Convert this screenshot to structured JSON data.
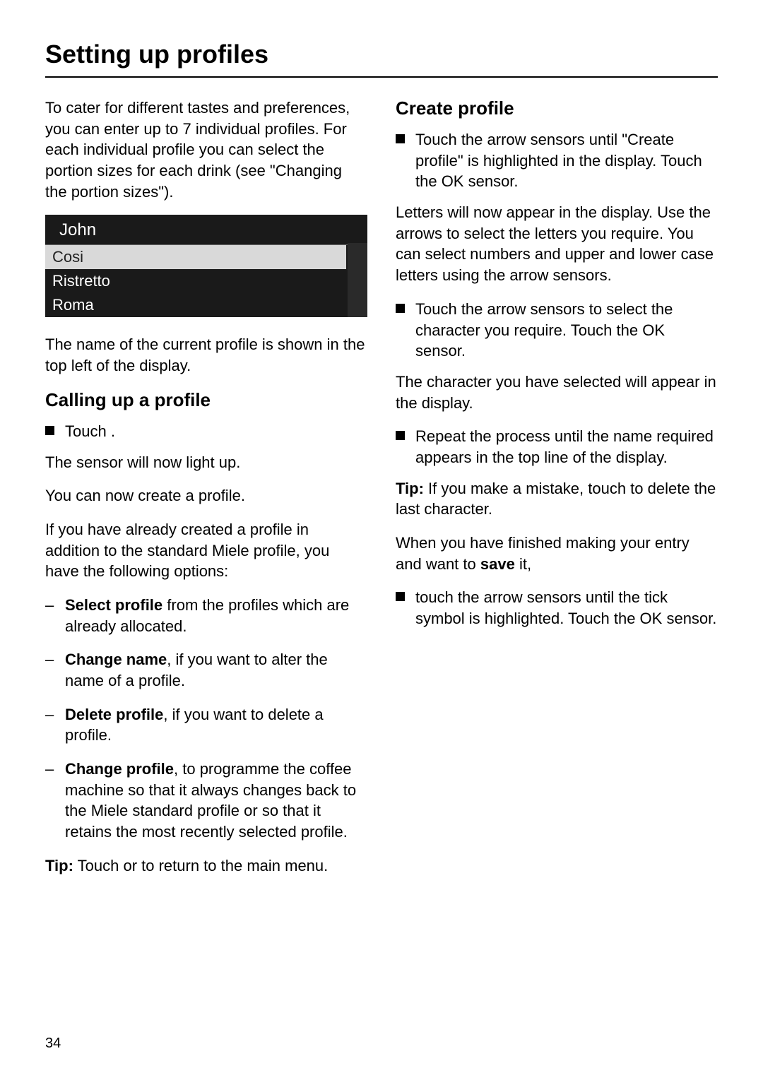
{
  "page": {
    "title": "Setting up profiles",
    "number": "34"
  },
  "left": {
    "intro": "To cater for different tastes and preferences, you can enter up to 7 individual profiles. For each individual profile you can select the portion sizes for each drink (see \"Changing the portion sizes\").",
    "display": {
      "profile_name": "John",
      "rows": [
        "Cosi",
        "Ristretto",
        "Roma"
      ]
    },
    "under_display": "The name of the current profile is shown in the top left of the display.",
    "section_heading": "Calling up a profile",
    "touch_item": "Touch   .",
    "after_touch_1": "The    sensor will now light up.",
    "after_touch_2": "You can now create a profile.",
    "after_touch_3": "If you have already created a profile in addition to the standard Miele profile, you have the following options:",
    "options": {
      "select_bold": "Select profile",
      "select_rest": " from the profiles which are already allocated.",
      "change_name_bold": "Change name",
      "change_name_rest": ", if you want to alter the name of a profile.",
      "delete_bold": "Delete profile",
      "delete_rest": ", if you want to delete a profile.",
      "change_profile_bold": "Change profile",
      "change_profile_rest": ", to programme the coffee machine so that it always changes back to the Miele standard profile or so that it retains the most recently selected profile."
    },
    "tip_bold": "Tip:",
    "tip_rest": " Touch      or     to return to the main menu."
  },
  "right": {
    "section_heading": "Create profile",
    "step1": "Touch the arrow sensors until \"Create profile\" is highlighted in the display. Touch the OK sensor.",
    "para1": "Letters will now appear in the display. Use the arrows to select the letters you require. You can select numbers and upper and lower case letters using the arrow sensors.",
    "step2": "Touch the arrow sensors to select the character you require. Touch the OK sensor.",
    "para2": "The character you have selected will appear in the display.",
    "step3": "Repeat the process until the name required appears in the top line of the display.",
    "tip_bold": "Tip:",
    "tip_rest": " If you make a mistake, touch       to delete the last character.",
    "para3_pre": "When you have finished making your entry and want to ",
    "para3_bold": "save",
    "para3_post": " it,",
    "step4": "touch the arrow sensors until the tick symbol is highlighted.  Touch the OK sensor."
  }
}
